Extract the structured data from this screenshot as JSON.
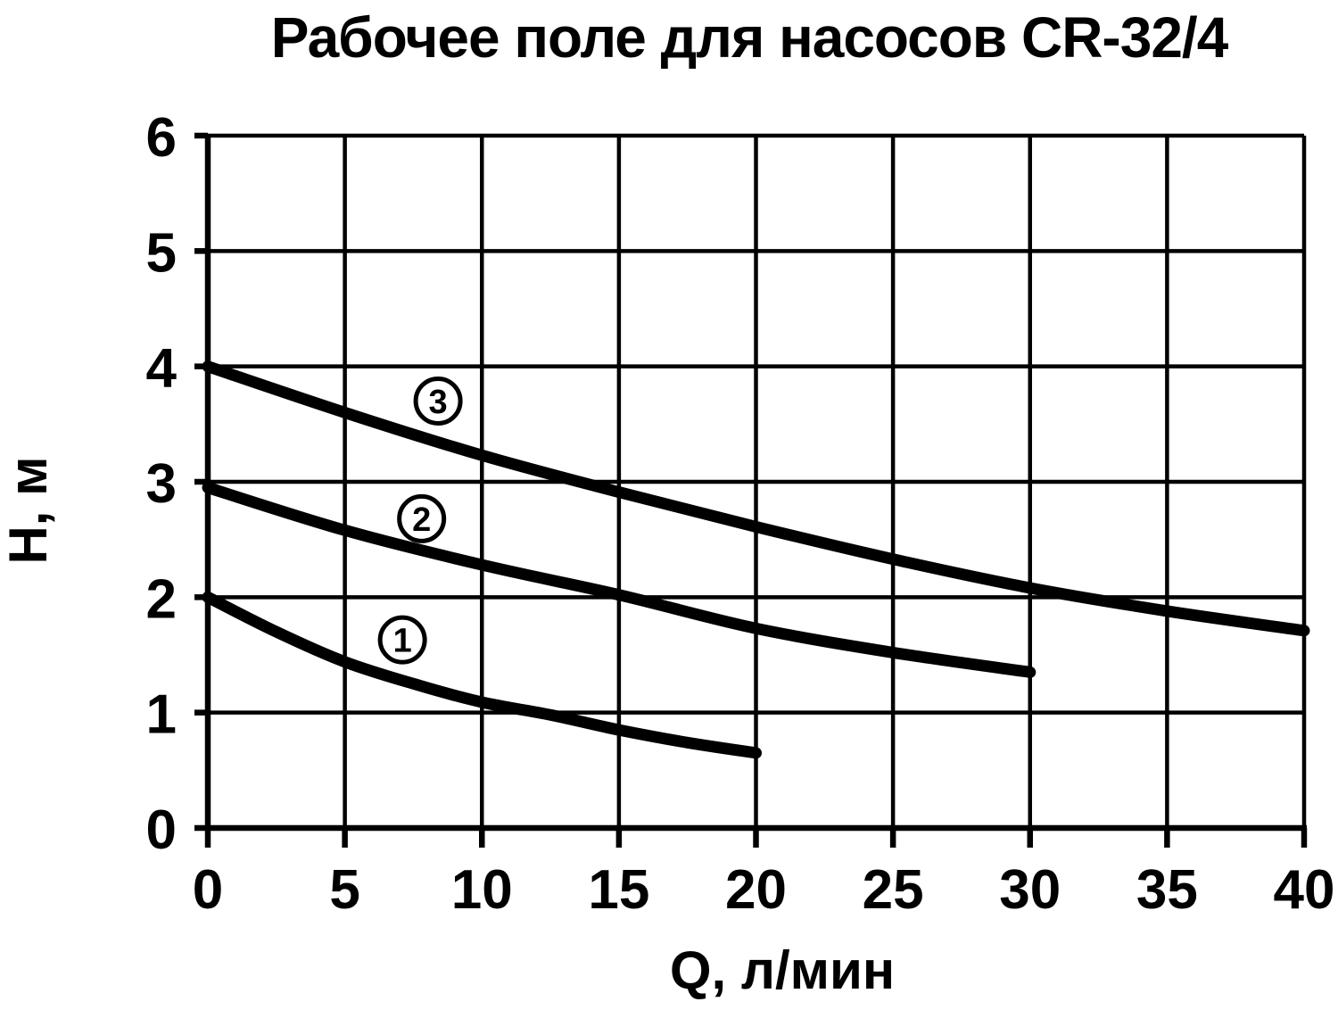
{
  "page": {
    "background": "#ffffff",
    "ink_color": "#000000"
  },
  "chart_data": {
    "type": "line",
    "title": "Рабочее поле для насосов CR-32/4",
    "xlabel": "Q, л/мин",
    "ylabel": "H, м",
    "xlim": [
      0,
      40
    ],
    "ylim": [
      0,
      6
    ],
    "xticks": [
      0,
      5,
      10,
      15,
      20,
      25,
      30,
      35,
      40
    ],
    "yticks": [
      0,
      1,
      2,
      3,
      4,
      5,
      6
    ],
    "grid": true,
    "legend": "circled numbers on curves",
    "series": [
      {
        "name": "curve-1",
        "label": "1",
        "points": [
          [
            0,
            2.0
          ],
          [
            2.5,
            1.7
          ],
          [
            5,
            1.44
          ],
          [
            7.5,
            1.25
          ],
          [
            10,
            1.09
          ],
          [
            12.5,
            0.98
          ],
          [
            15,
            0.85
          ],
          [
            17.5,
            0.74
          ],
          [
            20,
            0.65
          ]
        ],
        "label_at": [
          7.1,
          1.63
        ]
      },
      {
        "name": "curve-2",
        "label": "2",
        "points": [
          [
            0,
            2.95
          ],
          [
            5,
            2.58
          ],
          [
            10,
            2.28
          ],
          [
            15,
            2.02
          ],
          [
            20,
            1.73
          ],
          [
            25,
            1.52
          ],
          [
            30,
            1.35
          ]
        ],
        "label_at": [
          7.8,
          2.68
        ]
      },
      {
        "name": "curve-3",
        "label": "3",
        "points": [
          [
            0,
            4.0
          ],
          [
            5,
            3.6
          ],
          [
            10,
            3.23
          ],
          [
            15,
            2.91
          ],
          [
            20,
            2.61
          ],
          [
            25,
            2.33
          ],
          [
            30,
            2.08
          ],
          [
            35,
            1.88
          ],
          [
            40,
            1.71
          ]
        ],
        "label_at": [
          8.4,
          3.7
        ]
      }
    ]
  }
}
